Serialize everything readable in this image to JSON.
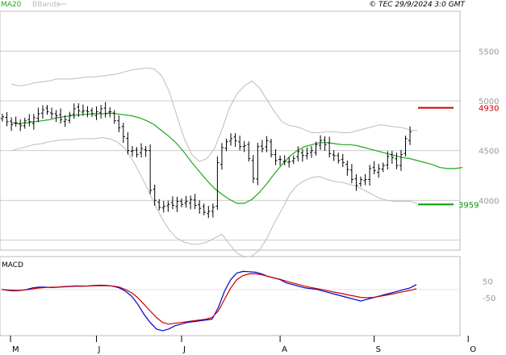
{
  "header": {
    "indicator_label": "MA20",
    "bands_label": "BBands",
    "copyright": "© TEC 29/9/2024 3:0 GMT",
    "ma_color": "#1fa81f",
    "bands_color": "#bdbdbd"
  },
  "chart_data": [
    {
      "type": "ohlc",
      "x_labels": [
        {
          "label": "M",
          "index": 0
        },
        {
          "label": "J",
          "index": 21
        },
        {
          "label": "J",
          "index": 40
        },
        {
          "label": "A",
          "index": 62
        },
        {
          "label": "S",
          "index": 83
        },
        {
          "label": "O",
          "index": 104
        }
      ],
      "y_ticks": [
        {
          "value": 4000,
          "label": "4000"
        },
        {
          "value": 4500,
          "label": "4500"
        },
        {
          "value": 5000,
          "label": "5000"
        },
        {
          "value": 5500,
          "label": "5500"
        }
      ],
      "ylim": [
        3500,
        5900
      ],
      "closes": [
        4840,
        4790,
        4760,
        4780,
        4750,
        4800,
        4790,
        4830,
        4870,
        4910,
        4890,
        4870,
        4850,
        4810,
        4810,
        4860,
        4920,
        4900,
        4900,
        4890,
        4870,
        4890,
        4920,
        4870,
        4890,
        4800,
        4730,
        4640,
        4500,
        4500,
        4460,
        4520,
        4500,
        4100,
        4000,
        3930,
        3940,
        3960,
        3950,
        3990,
        3960,
        3990,
        4010,
        3950,
        3920,
        3880,
        3890,
        3930,
        4380,
        4530,
        4590,
        4620,
        4600,
        4540,
        4550,
        4420,
        4220,
        4540,
        4520,
        4600,
        4460,
        4400,
        4410,
        4390,
        4390,
        4420,
        4490,
        4450,
        4470,
        4500,
        4560,
        4600,
        4560,
        4470,
        4450,
        4400,
        4380,
        4310,
        4210,
        4150,
        4210,
        4210,
        4320,
        4300,
        4320,
        4350,
        4440,
        4430,
        4350,
        4460,
        4620,
        4690
      ],
      "ma20": [
        4780,
        4770,
        4780,
        4790,
        4800,
        4810,
        4830,
        4840,
        4850,
        4860,
        4865,
        4870,
        4870,
        4875,
        4870,
        4860,
        4850,
        4830,
        4800,
        4760,
        4700,
        4640,
        4570,
        4480,
        4380,
        4290,
        4200,
        4120,
        4060,
        4010,
        3970,
        3970,
        4010,
        4080,
        4170,
        4270,
        4360,
        4440,
        4500,
        4540,
        4560,
        4580,
        4580,
        4570,
        4560,
        4560,
        4550,
        4530,
        4510,
        4490,
        4470,
        4450,
        4430,
        4420,
        4400,
        4380,
        4360,
        4330,
        4320,
        4320,
        4330
      ],
      "ma20_start_index": 1,
      "bb_upper": [
        5170,
        5150,
        5160,
        5180,
        5190,
        5200,
        5220,
        5220,
        5220,
        5230,
        5240,
        5240,
        5250,
        5260,
        5270,
        5290,
        5310,
        5320,
        5330,
        5320,
        5250,
        5090,
        4850,
        4620,
        4460,
        4390,
        4420,
        4520,
        4710,
        4930,
        5070,
        5150,
        5200,
        5130,
        5010,
        4890,
        4790,
        4750,
        4740,
        4710,
        4680,
        4680,
        4690,
        4690,
        4680,
        4680,
        4700,
        4720,
        4740,
        4760,
        4750,
        4740,
        4730,
        4710,
        4700
      ],
      "bb_upper_start_index": 1,
      "bb_lower": [
        4500,
        4520,
        4540,
        4560,
        4570,
        4590,
        4600,
        4610,
        4610,
        4620,
        4620,
        4620,
        4630,
        4620,
        4590,
        4530,
        4420,
        4280,
        4130,
        3970,
        3820,
        3700,
        3620,
        3580,
        3560,
        3560,
        3580,
        3620,
        3660,
        3560,
        3470,
        3430,
        3440,
        3500,
        3620,
        3780,
        3910,
        4060,
        4150,
        4200,
        4230,
        4240,
        4210,
        4190,
        4180,
        4160,
        4140,
        4100,
        4060,
        4020,
        4000,
        3990,
        3990,
        3990,
        3970
      ],
      "bb_lower_start_index": 1,
      "resistance": {
        "value": 4930,
        "label": "4930",
        "color": "#cc0000"
      },
      "support": {
        "value": 3959,
        "label": "3959",
        "color": "#009900"
      }
    },
    {
      "type": "line",
      "title": "MACD",
      "y_ticks": [
        {
          "value": 50,
          "label": "50"
        },
        {
          "value": -50,
          "label": "-50"
        }
      ],
      "ylim": [
        -280,
        200
      ],
      "series": [
        {
          "color": "#0000cc",
          "values": [
            0,
            -5,
            -8,
            -6,
            0,
            10,
            15,
            15,
            12,
            14,
            18,
            20,
            22,
            21,
            22,
            24,
            26,
            25,
            20,
            10,
            -10,
            -40,
            -90,
            -150,
            -200,
            -240,
            -250,
            -240,
            -220,
            -210,
            -200,
            -195,
            -190,
            -185,
            -180,
            -110,
            -10,
            60,
            100,
            110,
            108,
            105,
            95,
            80,
            70,
            60,
            40,
            30,
            20,
            10,
            5,
            0,
            -10,
            -20,
            -30,
            -40,
            -50,
            -60,
            -70,
            -60,
            -50,
            -40,
            -30,
            -20,
            -10,
            0,
            10,
            30
          ]
        },
        {
          "color": "#cc0000",
          "values": [
            0,
            -3,
            -5,
            -5,
            -2,
            4,
            9,
            12,
            14,
            15,
            16,
            18,
            20,
            20,
            21,
            22,
            23,
            23,
            21,
            15,
            0,
            -20,
            -50,
            -90,
            -130,
            -170,
            -200,
            -210,
            -205,
            -200,
            -195,
            -190,
            -185,
            -180,
            -170,
            -130,
            -60,
            10,
            60,
            85,
            95,
            95,
            90,
            80,
            70,
            62,
            50,
            40,
            30,
            20,
            12,
            5,
            -2,
            -10,
            -18,
            -25,
            -33,
            -40,
            -48,
            -50,
            -48,
            -42,
            -35,
            -28,
            -20,
            -12,
            -5,
            5
          ]
        }
      ],
      "ma_period_days": 20
    }
  ]
}
